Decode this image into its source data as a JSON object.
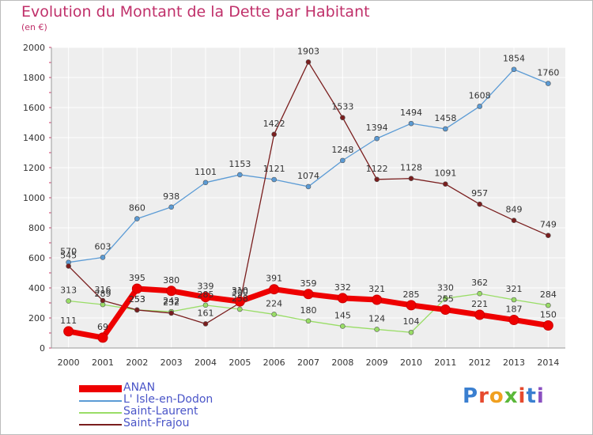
{
  "chart_data": {
    "type": "line",
    "title": "Evolution du Montant de la Dette par Habitant",
    "subtitle": "(en €)",
    "x": [
      "2000",
      "2001",
      "2002",
      "2003",
      "2004",
      "2005",
      "2006",
      "2007",
      "2008",
      "2009",
      "2010",
      "2011",
      "2012",
      "2013",
      "2014"
    ],
    "ylim": [
      0,
      2000
    ],
    "yticks": [
      "0",
      "200",
      "400",
      "600",
      "800",
      "1000",
      "1200",
      "1400",
      "1600",
      "1800",
      "2000"
    ],
    "grid": true,
    "legend_position": "bottom-left",
    "series": [
      {
        "name": "ANAN",
        "color": "#ee0000",
        "values": [
          111,
          69,
          395,
          380,
          339,
          310,
          391,
          359,
          332,
          321,
          285,
          255,
          221,
          187,
          150
        ]
      },
      {
        "name": "L' Isle-en-Dodon",
        "color": "#5b9bd5",
        "values": [
          570,
          603,
          860,
          938,
          1101,
          1153,
          1121,
          1074,
          1248,
          1394,
          1494,
          1458,
          1608,
          1854,
          1760
        ]
      },
      {
        "name": "Saint-Laurent",
        "color": "#99dd66",
        "values": [
          313,
          289,
          253,
          242,
          285,
          258,
          224,
          180,
          145,
          124,
          104,
          330,
          362,
          321,
          284
        ]
      },
      {
        "name": "Saint-Frajou",
        "color": "#7a1e1e",
        "values": [
          545,
          316,
          253,
          232,
          161,
          300,
          1422,
          1903,
          1533,
          1122,
          1128,
          1091,
          957,
          849,
          749
        ]
      }
    ]
  },
  "logo": {
    "text": "Proxiti",
    "colors": [
      "#3a7fd0",
      "#e64a2e",
      "#f0a020",
      "#5bb83a",
      "#e64a2e",
      "#3a7fd0",
      "#8a4fc0"
    ]
  }
}
